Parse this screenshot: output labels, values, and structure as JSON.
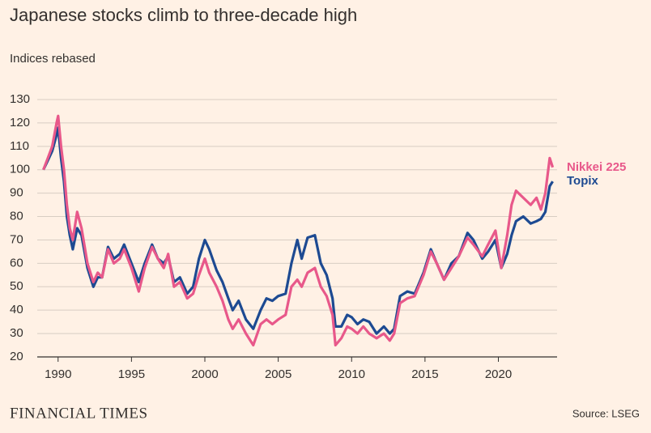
{
  "chart_data": {
    "type": "line",
    "title": "Japanese stocks climb to three-decade high",
    "subtitle": "Indices rebased",
    "source": "Source: LSEG",
    "brand": "FINANCIAL TIMES",
    "x": [
      1989.0,
      1989.3,
      1989.6,
      1989.9,
      1990.0,
      1990.2,
      1990.4,
      1990.6,
      1990.8,
      1991.0,
      1991.3,
      1991.6,
      1992.0,
      1992.4,
      1992.7,
      1993.0,
      1993.4,
      1993.8,
      1994.2,
      1994.5,
      1995.0,
      1995.5,
      1995.9,
      1996.4,
      1996.8,
      1997.2,
      1997.5,
      1997.9,
      1998.3,
      1998.8,
      1999.2,
      1999.6,
      2000.0,
      2000.3,
      2000.8,
      2001.2,
      2001.6,
      2001.9,
      2002.3,
      2002.8,
      2003.3,
      2003.8,
      2004.2,
      2004.6,
      2005.0,
      2005.5,
      2005.9,
      2006.3,
      2006.6,
      2007.0,
      2007.5,
      2007.9,
      2008.3,
      2008.7,
      2008.9,
      2009.3,
      2009.7,
      2010.0,
      2010.4,
      2010.8,
      2011.2,
      2011.7,
      2012.2,
      2012.6,
      2012.9,
      2013.3,
      2013.8,
      2014.3,
      2014.9,
      2015.4,
      2015.8,
      2016.3,
      2016.8,
      2017.3,
      2017.9,
      2018.3,
      2018.9,
      2019.3,
      2019.8,
      2020.2,
      2020.6,
      2020.9,
      2021.2,
      2021.7,
      2022.2,
      2022.6,
      2022.9,
      2023.2,
      2023.5,
      2023.7
    ],
    "series": [
      {
        "name": "Topix",
        "color": "#1d4a92",
        "values": [
          100,
          104,
          108,
          115,
          118,
          105,
          95,
          80,
          72,
          66,
          75,
          72,
          58,
          50,
          54,
          54,
          67,
          62,
          64,
          68,
          60,
          52,
          60,
          68,
          62,
          60,
          63,
          52,
          54,
          47,
          50,
          62,
          70,
          66,
          57,
          52,
          45,
          40,
          44,
          36,
          32,
          40,
          45,
          44,
          46,
          47,
          60,
          70,
          62,
          71,
          72,
          60,
          55,
          45,
          33,
          33,
          38,
          37,
          34,
          36,
          35,
          30,
          33,
          30,
          32,
          46,
          48,
          47,
          56,
          66,
          60,
          53,
          60,
          63,
          73,
          70,
          62,
          65,
          70,
          58,
          64,
          72,
          78,
          80,
          77,
          78,
          79,
          82,
          93,
          95
        ]
      },
      {
        "name": "Nikkei 225",
        "color": "#e8588a",
        "values": [
          100,
          105,
          110,
          120,
          123,
          110,
          100,
          85,
          75,
          70,
          82,
          75,
          60,
          52,
          56,
          54,
          66,
          60,
          62,
          66,
          58,
          48,
          58,
          67,
          62,
          58,
          64,
          50,
          52,
          45,
          47,
          55,
          62,
          56,
          50,
          44,
          36,
          32,
          36,
          30,
          25,
          34,
          36,
          34,
          36,
          38,
          50,
          53,
          50,
          56,
          58,
          50,
          46,
          38,
          25,
          28,
          33,
          32,
          30,
          33,
          30,
          28,
          30,
          27,
          30,
          43,
          45,
          46,
          55,
          65,
          60,
          53,
          58,
          63,
          71,
          68,
          63,
          68,
          74,
          58,
          72,
          85,
          91,
          88,
          85,
          88,
          83,
          90,
          105,
          101
        ]
      }
    ],
    "xlim": [
      1988.8,
      2024.0
    ],
    "xticks": [
      1990,
      1995,
      2000,
      2005,
      2010,
      2015,
      2020
    ],
    "ylim": [
      20,
      130
    ],
    "yticks": [
      20,
      30,
      40,
      50,
      60,
      70,
      80,
      90,
      100,
      110,
      120,
      130
    ],
    "grid": true
  }
}
